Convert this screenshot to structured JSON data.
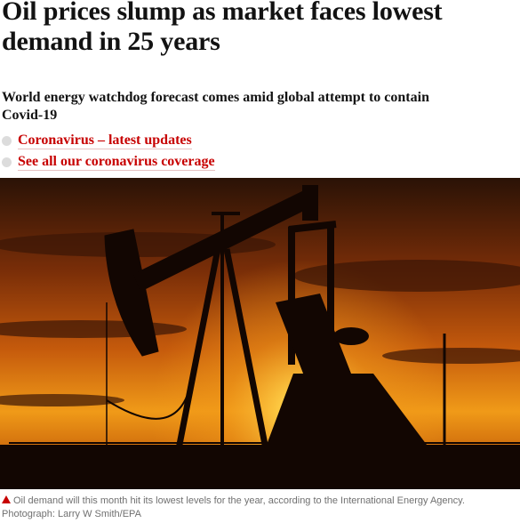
{
  "headline": "Oil prices slump as market faces lowest demand in 25 years",
  "standfirst": "World energy watchdog forecast comes amid global attempt to contain Covid-19",
  "links": [
    "Coronavirus – latest updates",
    "See all our coronavirus coverage"
  ],
  "caption": {
    "text": "Oil demand will this month hit its lowest levels for the year, according to the International Energy Agency.",
    "credit": "Photograph: Larry W Smith/EPA"
  }
}
